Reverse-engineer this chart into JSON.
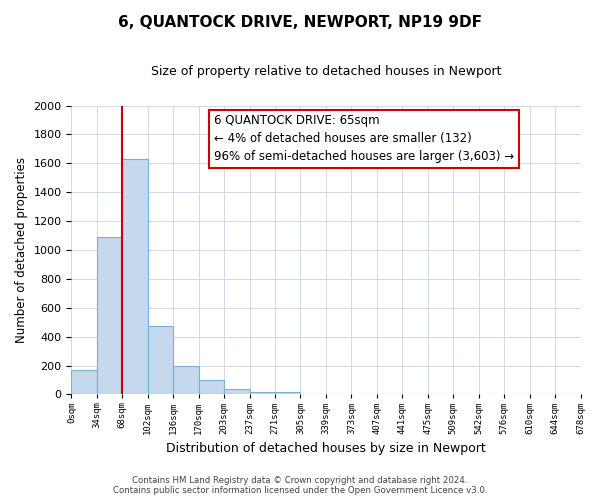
{
  "title": "6, QUANTOCK DRIVE, NEWPORT, NP19 9DF",
  "subtitle": "Size of property relative to detached houses in Newport",
  "xlabel": "Distribution of detached houses by size in Newport",
  "ylabel": "Number of detached properties",
  "bar_values": [
    170,
    1090,
    1630,
    475,
    200,
    100,
    35,
    20,
    15,
    0,
    0,
    0,
    0,
    0,
    0,
    0,
    0,
    0,
    0,
    0
  ],
  "bar_labels": [
    "0sqm",
    "34sqm",
    "68sqm",
    "102sqm",
    "136sqm",
    "170sqm",
    "203sqm",
    "237sqm",
    "271sqm",
    "305sqm",
    "339sqm",
    "373sqm",
    "407sqm",
    "441sqm",
    "475sqm",
    "509sqm",
    "542sqm",
    "576sqm",
    "610sqm",
    "644sqm",
    "678sqm"
  ],
  "bar_color": "#c5d8ed",
  "bar_edge_color": "#7bafd4",
  "property_line_x": 2.0,
  "property_line_color": "#cc0000",
  "ylim": [
    0,
    2000
  ],
  "yticks": [
    0,
    200,
    400,
    600,
    800,
    1000,
    1200,
    1400,
    1600,
    1800,
    2000
  ],
  "annotation_title": "6 QUANTOCK DRIVE: 65sqm",
  "annotation_line1": "← 4% of detached houses are smaller (132)",
  "annotation_line2": "96% of semi-detached houses are larger (3,603) →",
  "annotation_box_color": "#ffffff",
  "annotation_box_edge_color": "#cc0000",
  "footer_line1": "Contains HM Land Registry data © Crown copyright and database right 2024.",
  "footer_line2": "Contains public sector information licensed under the Open Government Licence v3.0.",
  "background_color": "#ffffff",
  "grid_color": "#c8d4e0"
}
